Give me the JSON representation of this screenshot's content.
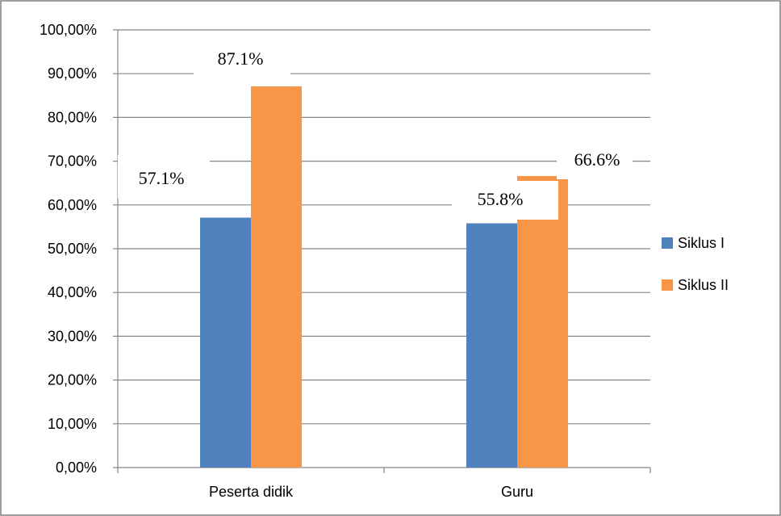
{
  "chart_data": {
    "type": "bar",
    "categories": [
      "Peserta didik",
      "Guru"
    ],
    "series": [
      {
        "name": "Siklus I",
        "values": [
          57.1,
          55.8
        ],
        "color": "#4F81BD"
      },
      {
        "name": "Siklus II",
        "values": [
          87.1,
          66.6
        ],
        "color": "#F79646"
      }
    ],
    "data_labels": [
      [
        "57.1%",
        "55.8%"
      ],
      [
        "87.1%",
        "66.6%"
      ]
    ],
    "yticks": [
      0,
      10,
      20,
      30,
      40,
      50,
      60,
      70,
      80,
      90,
      100
    ],
    "ytick_labels": [
      "0,00%",
      "10,00%",
      "20,00%",
      "30,00%",
      "40,00%",
      "50,00%",
      "60,00%",
      "70,00%",
      "80,00%",
      "90,00%",
      "100,00%"
    ],
    "ylim": [
      0,
      100
    ],
    "grid": true,
    "legend_position": "right",
    "title": "",
    "xlabel": "",
    "ylabel": ""
  }
}
